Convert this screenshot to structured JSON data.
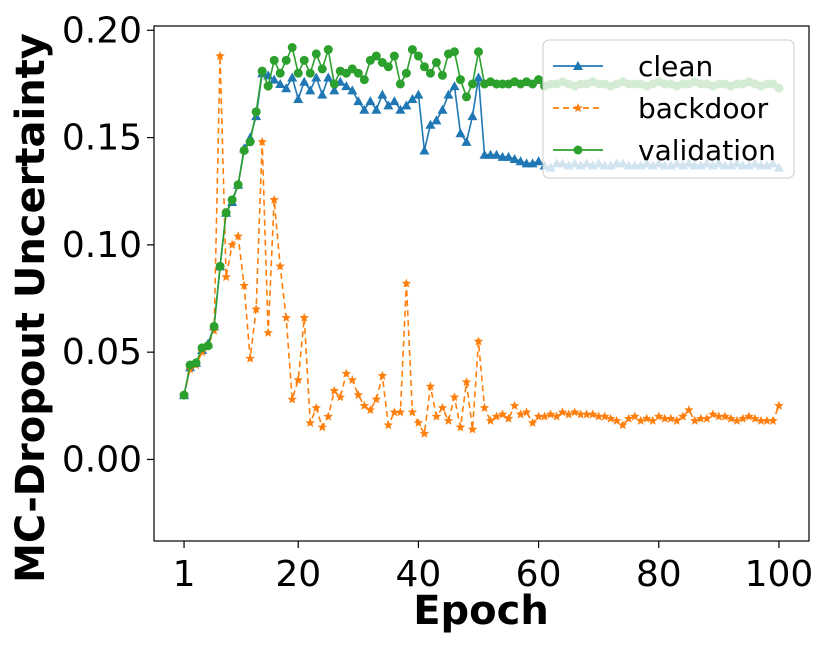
{
  "chart_data": {
    "type": "line",
    "title": "",
    "xlabel": "Epoch",
    "ylabel": "MC-Dropout Uncertainty",
    "xlim": [
      -4,
      105
    ],
    "ylim": [
      -0.038,
      0.202
    ],
    "xticks": [
      1,
      20,
      40,
      60,
      80,
      100
    ],
    "xtick_labels": [
      "1",
      "20",
      "40",
      "60",
      "80",
      "100"
    ],
    "yticks": [
      0.0,
      0.05,
      0.1,
      0.15,
      0.2
    ],
    "ytick_labels": [
      "0.00",
      "0.05",
      "0.10",
      "0.15",
      "0.20"
    ],
    "grid": false,
    "legend_placement": "top-right",
    "series": [
      {
        "name": "clean",
        "color": "#1f77b4",
        "linestyle": "solid",
        "marker": "triangle",
        "x": [
          1,
          2,
          3,
          4,
          5,
          6,
          7,
          8,
          9,
          10,
          11,
          12,
          13,
          14,
          15,
          16,
          17,
          18,
          19,
          20,
          21,
          22,
          23,
          24,
          25,
          26,
          27,
          28,
          29,
          30,
          31,
          32,
          33,
          34,
          35,
          36,
          37,
          38,
          39,
          40,
          41,
          42,
          43,
          44,
          45,
          46,
          47,
          48,
          49,
          50,
          51,
          52,
          53,
          54,
          55,
          56,
          57,
          58,
          59,
          60,
          61,
          62,
          63,
          64,
          65,
          66,
          67,
          68,
          69,
          70,
          71,
          72,
          73,
          74,
          75,
          76,
          77,
          78,
          79,
          80,
          81,
          82,
          83,
          84,
          85,
          86,
          87,
          88,
          89,
          90,
          91,
          92,
          93,
          94,
          95,
          96,
          97,
          98,
          99,
          100
        ],
        "y": [
          0.03,
          0.043,
          0.045,
          0.051,
          0.054,
          0.062,
          0.09,
          0.115,
          0.12,
          0.128,
          0.145,
          0.15,
          0.16,
          0.18,
          0.179,
          0.177,
          0.175,
          0.173,
          0.178,
          0.168,
          0.176,
          0.172,
          0.178,
          0.17,
          0.178,
          0.172,
          0.176,
          0.174,
          0.172,
          0.167,
          0.163,
          0.167,
          0.163,
          0.17,
          0.165,
          0.167,
          0.163,
          0.165,
          0.168,
          0.17,
          0.144,
          0.156,
          0.158,
          0.163,
          0.17,
          0.174,
          0.152,
          0.148,
          0.16,
          0.178,
          0.142,
          0.142,
          0.142,
          0.141,
          0.141,
          0.14,
          0.139,
          0.138,
          0.138,
          0.139,
          0.137,
          0.136,
          0.138,
          0.138,
          0.137,
          0.138,
          0.137,
          0.138,
          0.137,
          0.138,
          0.137,
          0.137,
          0.138,
          0.138,
          0.137,
          0.137,
          0.137,
          0.138,
          0.137,
          0.138,
          0.137,
          0.137,
          0.138,
          0.137,
          0.138,
          0.137,
          0.137,
          0.138,
          0.137,
          0.138,
          0.137,
          0.137,
          0.138,
          0.137,
          0.137,
          0.138,
          0.137,
          0.137,
          0.138,
          0.136
        ]
      },
      {
        "name": "backdoor",
        "color": "#ff7f0e",
        "linestyle": "dashed",
        "marker": "star",
        "x": [
          1,
          2,
          3,
          4,
          5,
          6,
          7,
          8,
          9,
          10,
          11,
          12,
          13,
          14,
          15,
          16,
          17,
          18,
          19,
          20,
          21,
          22,
          23,
          24,
          25,
          26,
          27,
          28,
          29,
          30,
          31,
          32,
          33,
          34,
          35,
          36,
          37,
          38,
          39,
          40,
          41,
          42,
          43,
          44,
          45,
          46,
          47,
          48,
          49,
          50,
          51,
          52,
          53,
          54,
          55,
          56,
          57,
          58,
          59,
          60,
          61,
          62,
          63,
          64,
          65,
          66,
          67,
          68,
          69,
          70,
          71,
          72,
          73,
          74,
          75,
          76,
          77,
          78,
          79,
          80,
          81,
          82,
          83,
          84,
          85,
          86,
          87,
          88,
          89,
          90,
          91,
          92,
          93,
          94,
          95,
          96,
          97,
          98,
          99,
          100
        ],
        "y": [
          0.03,
          0.042,
          0.044,
          0.05,
          0.053,
          0.06,
          0.188,
          0.085,
          0.1,
          0.104,
          0.081,
          0.047,
          0.07,
          0.148,
          0.059,
          0.121,
          0.09,
          0.066,
          0.028,
          0.037,
          0.066,
          0.017,
          0.024,
          0.015,
          0.02,
          0.032,
          0.029,
          0.04,
          0.037,
          0.03,
          0.025,
          0.023,
          0.028,
          0.039,
          0.016,
          0.022,
          0.022,
          0.082,
          0.022,
          0.017,
          0.012,
          0.034,
          0.02,
          0.024,
          0.018,
          0.029,
          0.015,
          0.036,
          0.014,
          0.055,
          0.024,
          0.018,
          0.02,
          0.021,
          0.019,
          0.025,
          0.021,
          0.022,
          0.017,
          0.02,
          0.02,
          0.021,
          0.02,
          0.022,
          0.021,
          0.022,
          0.021,
          0.021,
          0.021,
          0.02,
          0.02,
          0.019,
          0.018,
          0.016,
          0.019,
          0.02,
          0.018,
          0.019,
          0.018,
          0.02,
          0.019,
          0.019,
          0.018,
          0.02,
          0.023,
          0.018,
          0.019,
          0.019,
          0.021,
          0.02,
          0.02,
          0.019,
          0.018,
          0.019,
          0.02,
          0.019,
          0.018,
          0.018,
          0.018,
          0.025
        ]
      },
      {
        "name": "validation",
        "color": "#2ca02c",
        "linestyle": "solid",
        "marker": "circle",
        "x": [
          1,
          2,
          3,
          4,
          5,
          6,
          7,
          8,
          9,
          10,
          11,
          12,
          13,
          14,
          15,
          16,
          17,
          18,
          19,
          20,
          21,
          22,
          23,
          24,
          25,
          26,
          27,
          28,
          29,
          30,
          31,
          32,
          33,
          34,
          35,
          36,
          37,
          38,
          39,
          40,
          41,
          42,
          43,
          44,
          45,
          46,
          47,
          48,
          49,
          50,
          51,
          52,
          53,
          54,
          55,
          56,
          57,
          58,
          59,
          60,
          61,
          62,
          63,
          64,
          65,
          66,
          67,
          68,
          69,
          70,
          71,
          72,
          73,
          74,
          75,
          76,
          77,
          78,
          79,
          80,
          81,
          82,
          83,
          84,
          85,
          86,
          87,
          88,
          89,
          90,
          91,
          92,
          93,
          94,
          95,
          96,
          97,
          98,
          99,
          100
        ],
        "y": [
          0.03,
          0.044,
          0.045,
          0.052,
          0.053,
          0.062,
          0.09,
          0.115,
          0.121,
          0.128,
          0.144,
          0.148,
          0.162,
          0.181,
          0.174,
          0.186,
          0.18,
          0.186,
          0.192,
          0.18,
          0.186,
          0.18,
          0.189,
          0.182,
          0.191,
          0.175,
          0.181,
          0.18,
          0.182,
          0.18,
          0.177,
          0.186,
          0.188,
          0.185,
          0.183,
          0.188,
          0.175,
          0.18,
          0.191,
          0.188,
          0.183,
          0.18,
          0.185,
          0.179,
          0.189,
          0.19,
          0.177,
          0.169,
          0.175,
          0.19,
          0.175,
          0.176,
          0.175,
          0.175,
          0.175,
          0.176,
          0.175,
          0.176,
          0.175,
          0.177,
          0.174,
          0.175,
          0.175,
          0.176,
          0.175,
          0.174,
          0.175,
          0.175,
          0.176,
          0.175,
          0.175,
          0.174,
          0.175,
          0.176,
          0.175,
          0.175,
          0.175,
          0.174,
          0.175,
          0.176,
          0.175,
          0.175,
          0.174,
          0.175,
          0.175,
          0.176,
          0.175,
          0.175,
          0.174,
          0.175,
          0.175,
          0.174,
          0.175,
          0.175,
          0.176,
          0.175,
          0.174,
          0.175,
          0.175,
          0.173
        ]
      }
    ]
  }
}
